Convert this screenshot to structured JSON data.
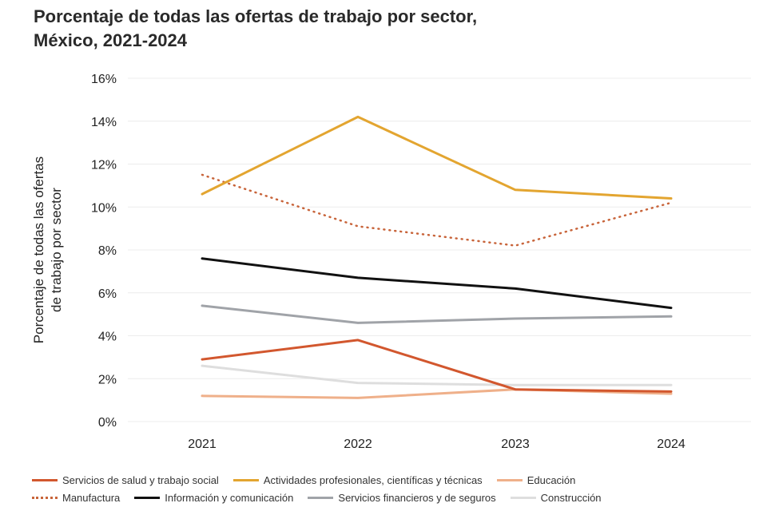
{
  "chart_data": {
    "type": "line",
    "title": "Porcentaje de todas las ofertas de trabajo por sector, México, 2021-2024",
    "title_lines": [
      "Porcentaje de todas las ofertas de trabajo por sector,",
      "México, 2021-2024"
    ],
    "xlabel": "",
    "ylabel_lines": [
      "Porcentaje de todas las ofertas",
      "de trabajo por sector"
    ],
    "x": [
      "2021",
      "2022",
      "2023",
      "2024"
    ],
    "ylim": [
      0,
      16
    ],
    "yticks": [
      0,
      2,
      4,
      6,
      8,
      10,
      12,
      14,
      16
    ],
    "ytick_labels": [
      "0%",
      "2%",
      "4%",
      "6%",
      "8%",
      "10%",
      "12%",
      "14%",
      "16%"
    ],
    "grid": true,
    "legend_position": "bottom",
    "series": [
      {
        "name": "Servicios de salud y trabajo social",
        "color": "#d2572e",
        "dashed": false,
        "values": [
          2.9,
          3.8,
          1.5,
          1.4
        ]
      },
      {
        "name": "Actividades profesionales, científicas y técnicas",
        "color": "#e3a530",
        "dashed": false,
        "values": [
          10.6,
          14.2,
          10.8,
          10.4
        ]
      },
      {
        "name": "Educación",
        "color": "#efb08a",
        "dashed": false,
        "values": [
          1.2,
          1.1,
          1.5,
          1.3
        ]
      },
      {
        "name": "Manufactura",
        "color": "#c8643a",
        "dashed": true,
        "values": [
          11.5,
          9.1,
          8.2,
          10.2
        ]
      },
      {
        "name": "Información y comunicación",
        "color": "#111111",
        "dashed": false,
        "values": [
          7.6,
          6.7,
          6.2,
          5.3
        ]
      },
      {
        "name": "Servicios financieros y de seguros",
        "color": "#a0a3a8",
        "dashed": false,
        "values": [
          5.4,
          4.6,
          4.8,
          4.9
        ]
      },
      {
        "name": "Construcción",
        "color": "#dedede",
        "dashed": false,
        "values": [
          2.6,
          1.8,
          1.7,
          1.7
        ]
      }
    ]
  }
}
